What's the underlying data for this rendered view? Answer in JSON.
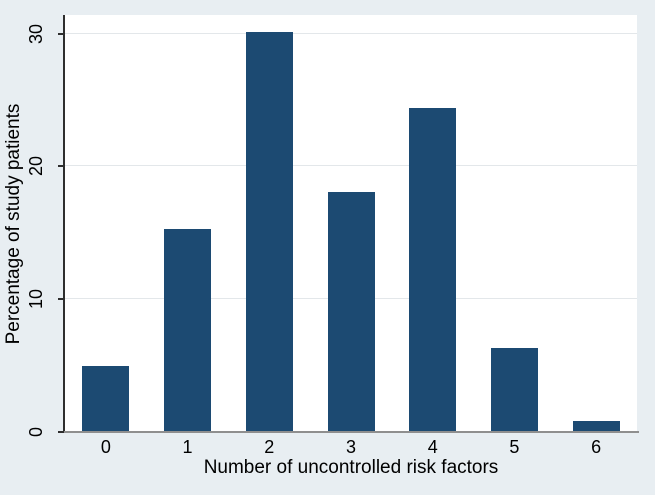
{
  "chart_data": {
    "type": "bar",
    "categories": [
      "0",
      "1",
      "2",
      "3",
      "4",
      "5",
      "6"
    ],
    "values": [
      5.0,
      15.3,
      30.1,
      18.1,
      24.4,
      6.3,
      0.8
    ],
    "title": "",
    "xlabel": "Number of uncontrolled risk factors",
    "ylabel": "Percentage of study patients",
    "ylim": [
      0,
      31.4
    ],
    "yticks": [
      0,
      10,
      20,
      30
    ],
    "grid": true,
    "legend": "none",
    "colors": {
      "bar_fill": "#1c4a72",
      "outer_background": "#e8eef2",
      "plot_background": "#ffffff",
      "gridline": "#e3e7ea",
      "y_axis_line": "#2e2e2e",
      "x_axis_line": "#8f8f8f",
      "text": "#000000"
    }
  }
}
